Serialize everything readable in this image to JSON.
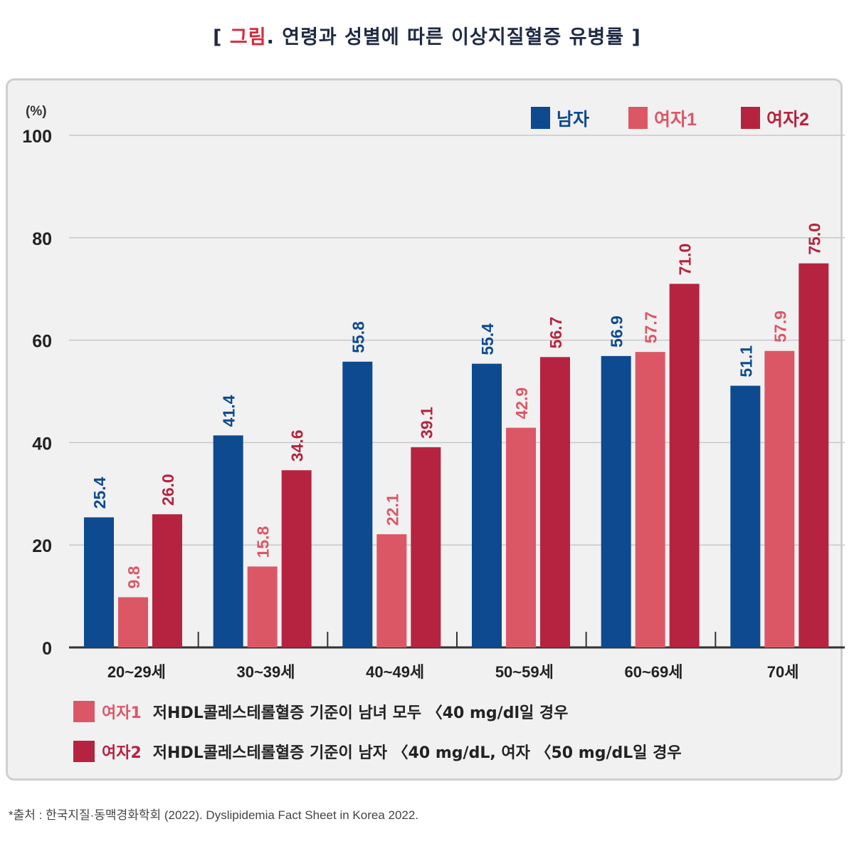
{
  "title": {
    "open": "[ ",
    "accent": "그림",
    "rest": ". 연령과 성별에 따른 이상지질혈증 유병률 ]"
  },
  "colors": {
    "men": "#0d4a8f",
    "women1": "#dc5766",
    "women2": "#b62340",
    "grid": "#c8c8c8",
    "panel_bg": "#f1f1f1",
    "panel_border": "#cfcfcf"
  },
  "chart_data": {
    "type": "bar",
    "y_unit": "(%)",
    "ylim": [
      0,
      100
    ],
    "yticks": [
      0,
      20,
      40,
      60,
      80,
      100
    ],
    "categories": [
      "20~29세",
      "30~39세",
      "40~49세",
      "50~59세",
      "60~69세",
      "70세"
    ],
    "legend_position": "top-right",
    "grid": true,
    "series": [
      {
        "name": "남자",
        "color": "#0d4a8f",
        "values": [
          25.4,
          41.4,
          55.8,
          55.4,
          56.9,
          51.1
        ],
        "labels": [
          "25.4",
          "41.4",
          "55.8",
          "55.4",
          "56.9",
          "51.1"
        ]
      },
      {
        "name": "여자1",
        "color": "#dc5766",
        "values": [
          9.8,
          15.8,
          22.1,
          42.9,
          57.7,
          57.9
        ],
        "labels": [
          "9.8",
          "15.8",
          "22.1",
          "42.9",
          "57.7",
          "57.9"
        ]
      },
      {
        "name": "여자2",
        "color": "#b62340",
        "values": [
          26.0,
          34.6,
          39.1,
          56.7,
          71.0,
          75.0
        ],
        "labels": [
          "26.0",
          "34.6",
          "39.1",
          "56.7",
          "71.0",
          "75.0"
        ]
      }
    ]
  },
  "notes": [
    {
      "key": "여자1",
      "color": "#dc5766",
      "text": "저HDL콜레스테롤혈증 기준이 남녀 모두 〈40 mg/dl일 경우"
    },
    {
      "key": "여자2",
      "color": "#b62340",
      "text": "저HDL콜레스테롤혈증 기준이 남자 〈40 mg/dL, 여자 〈50 mg/dL일 경우"
    }
  ],
  "source": "*출처 : 한국지질·동맥경화학회 (2022). Dyslipidemia Fact Sheet in Korea 2022."
}
